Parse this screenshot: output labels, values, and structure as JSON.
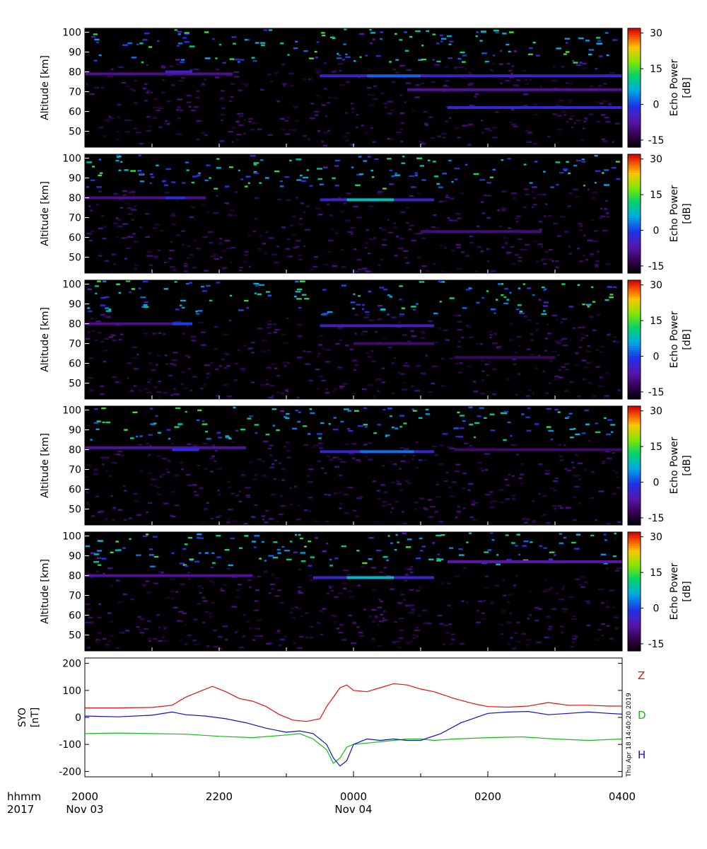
{
  "chart_data": [
    {
      "type": "heatmap",
      "panel": 1,
      "ylabel": "Altitude [km]",
      "yticks": [
        50,
        60,
        70,
        80,
        90,
        100
      ],
      "ylim": [
        42,
        102
      ],
      "colorbar_label": "Echo Power [dB]",
      "colorbar_ticks": [
        -15,
        0,
        15,
        30
      ],
      "colorbar_range": [
        -18,
        32
      ],
      "layers": [
        {
          "t0": 0.0,
          "t1": 2.2,
          "alt": 79,
          "power": -9
        },
        {
          "t0": 1.2,
          "t1": 1.6,
          "alt": 80,
          "power": -4
        },
        {
          "t0": 3.5,
          "t1": 8.0,
          "alt": 78,
          "power": -4
        },
        {
          "t0": 4.2,
          "t1": 5.0,
          "alt": 78,
          "power": 2
        },
        {
          "t0": 4.8,
          "t1": 8.0,
          "alt": 71,
          "power": -8
        },
        {
          "t0": 5.4,
          "t1": 8.0,
          "alt": 62,
          "power": -3
        }
      ]
    },
    {
      "type": "heatmap",
      "panel": 2,
      "ylabel": "Altitude [km]",
      "yticks": [
        50,
        60,
        70,
        80,
        90,
        100
      ],
      "ylim": [
        42,
        102
      ],
      "colorbar_label": "Echo Power [dB]",
      "colorbar_ticks": [
        -15,
        0,
        15,
        30
      ],
      "colorbar_range": [
        -18,
        32
      ],
      "layers": [
        {
          "t0": 0.0,
          "t1": 1.8,
          "alt": 80,
          "power": -9
        },
        {
          "t0": 1.2,
          "t1": 1.5,
          "alt": 80,
          "power": -2
        },
        {
          "t0": 3.5,
          "t1": 5.2,
          "alt": 79,
          "power": -4
        },
        {
          "t0": 3.9,
          "t1": 4.6,
          "alt": 79,
          "power": 9
        },
        {
          "t0": 5.0,
          "t1": 6.8,
          "alt": 63,
          "power": -10
        }
      ]
    },
    {
      "type": "heatmap",
      "panel": 3,
      "ylabel": "Altitude [km]",
      "yticks": [
        50,
        60,
        70,
        80,
        90,
        100
      ],
      "ylim": [
        42,
        102
      ],
      "colorbar_label": "Echo Power [dB]",
      "colorbar_ticks": [
        -15,
        0,
        15,
        30
      ],
      "colorbar_range": [
        -18,
        32
      ],
      "layers": [
        {
          "t0": 0.0,
          "t1": 1.5,
          "alt": 80,
          "power": -9
        },
        {
          "t0": 1.3,
          "t1": 1.6,
          "alt": 80,
          "power": 0
        },
        {
          "t0": 3.5,
          "t1": 5.2,
          "alt": 79,
          "power": -5
        },
        {
          "t0": 4.0,
          "t1": 5.2,
          "alt": 70,
          "power": -11
        },
        {
          "t0": 5.5,
          "t1": 7.0,
          "alt": 63,
          "power": -12
        }
      ]
    },
    {
      "type": "heatmap",
      "panel": 4,
      "ylabel": "Altitude [km]",
      "yticks": [
        50,
        60,
        70,
        80,
        90,
        100
      ],
      "ylim": [
        42,
        102
      ],
      "colorbar_label": "Echo Power [dB]",
      "colorbar_ticks": [
        -15,
        0,
        15,
        30
      ],
      "colorbar_range": [
        -18,
        32
      ],
      "layers": [
        {
          "t0": 0.0,
          "t1": 2.4,
          "alt": 81,
          "power": -8
        },
        {
          "t0": 1.3,
          "t1": 1.7,
          "alt": 80,
          "power": -1
        },
        {
          "t0": 3.5,
          "t1": 5.2,
          "alt": 79,
          "power": -3
        },
        {
          "t0": 4.1,
          "t1": 4.9,
          "alt": 79,
          "power": 3
        },
        {
          "t0": 5.5,
          "t1": 8.0,
          "alt": 80,
          "power": -11
        }
      ]
    },
    {
      "type": "heatmap",
      "panel": 5,
      "ylabel": "Altitude [km]",
      "yticks": [
        50,
        60,
        70,
        80,
        90,
        100
      ],
      "ylim": [
        42,
        102
      ],
      "colorbar_label": "Echo Power [dB]",
      "colorbar_ticks": [
        -15,
        0,
        15,
        30
      ],
      "colorbar_range": [
        -18,
        32
      ],
      "layers": [
        {
          "t0": 0.0,
          "t1": 2.5,
          "alt": 80,
          "power": -8
        },
        {
          "t0": 3.4,
          "t1": 5.2,
          "alt": 79,
          "power": -3
        },
        {
          "t0": 3.9,
          "t1": 4.6,
          "alt": 79,
          "power": 8
        },
        {
          "t0": 5.4,
          "t1": 8.0,
          "alt": 87,
          "power": -7
        }
      ]
    },
    {
      "type": "line",
      "ylabel": "SYO [nT]",
      "ylim": [
        -220,
        220
      ],
      "yticks": [
        -200,
        -100,
        0,
        100,
        200
      ],
      "series": [
        {
          "name": "Z",
          "color": "#e01010",
          "x": [
            0,
            0.5,
            1.0,
            1.3,
            1.5,
            1.7,
            1.9,
            2.1,
            2.3,
            2.5,
            2.7,
            2.9,
            3.1,
            3.3,
            3.5,
            3.6,
            3.7,
            3.8,
            3.9,
            4.0,
            4.2,
            4.4,
            4.6,
            4.8,
            5.0,
            5.2,
            5.5,
            5.8,
            6.0,
            6.3,
            6.6,
            6.9,
            7.2,
            7.5,
            7.8,
            8.0
          ],
          "y": [
            35,
            35,
            37,
            45,
            75,
            95,
            115,
            95,
            70,
            60,
            40,
            10,
            -10,
            -15,
            -5,
            40,
            75,
            110,
            120,
            100,
            95,
            110,
            125,
            120,
            105,
            95,
            70,
            50,
            40,
            38,
            42,
            55,
            45,
            45,
            42,
            42
          ]
        },
        {
          "name": "D",
          "color": "#10c010",
          "x": [
            0,
            0.5,
            1.0,
            1.5,
            2.0,
            2.5,
            3.0,
            3.2,
            3.4,
            3.6,
            3.7,
            3.8,
            3.9,
            4.0,
            4.2,
            4.4,
            4.6,
            4.8,
            5.0,
            5.2,
            5.5,
            6.0,
            6.5,
            7.0,
            7.5,
            8.0
          ],
          "y": [
            -60,
            -58,
            -60,
            -62,
            -70,
            -75,
            -65,
            -60,
            -80,
            -120,
            -170,
            -150,
            -110,
            -100,
            -95,
            -90,
            -85,
            -80,
            -80,
            -85,
            -80,
            -75,
            -72,
            -80,
            -85,
            -80
          ]
        },
        {
          "name": "H",
          "color": "#1010c8",
          "x": [
            0,
            0.5,
            1.0,
            1.3,
            1.5,
            1.8,
            2.1,
            2.4,
            2.7,
            3.0,
            3.2,
            3.4,
            3.6,
            3.7,
            3.8,
            3.9,
            4.0,
            4.2,
            4.4,
            4.6,
            4.8,
            5.0,
            5.3,
            5.6,
            6.0,
            6.3,
            6.6,
            6.9,
            7.2,
            7.5,
            7.8,
            8.0
          ],
          "y": [
            5,
            2,
            8,
            20,
            10,
            5,
            -5,
            -20,
            -40,
            -55,
            -50,
            -60,
            -100,
            -150,
            -180,
            -160,
            -100,
            -80,
            -85,
            -80,
            -85,
            -85,
            -60,
            -20,
            15,
            20,
            22,
            10,
            15,
            20,
            15,
            12
          ]
        }
      ],
      "label_colors": {
        "Z": "#e01010",
        "D": "#10c010",
        "H": "#1010c8"
      }
    }
  ],
  "time_axis": {
    "ticks": [
      {
        "t": 0,
        "label": "2000"
      },
      {
        "t": 2,
        "label": "2200"
      },
      {
        "t": 4,
        "label": "0000"
      },
      {
        "t": 6,
        "label": "0200"
      },
      {
        "t": 8,
        "label": "0400"
      }
    ],
    "minor_ticks": [
      1,
      3,
      5,
      7
    ],
    "dates": [
      {
        "t": 0,
        "label": "Nov 03"
      },
      {
        "t": 4,
        "label": "Nov 04"
      }
    ],
    "format_label": "hhmm",
    "year_label": "2017"
  },
  "side_note": "Thu Apr 18 14:40:20 2019"
}
